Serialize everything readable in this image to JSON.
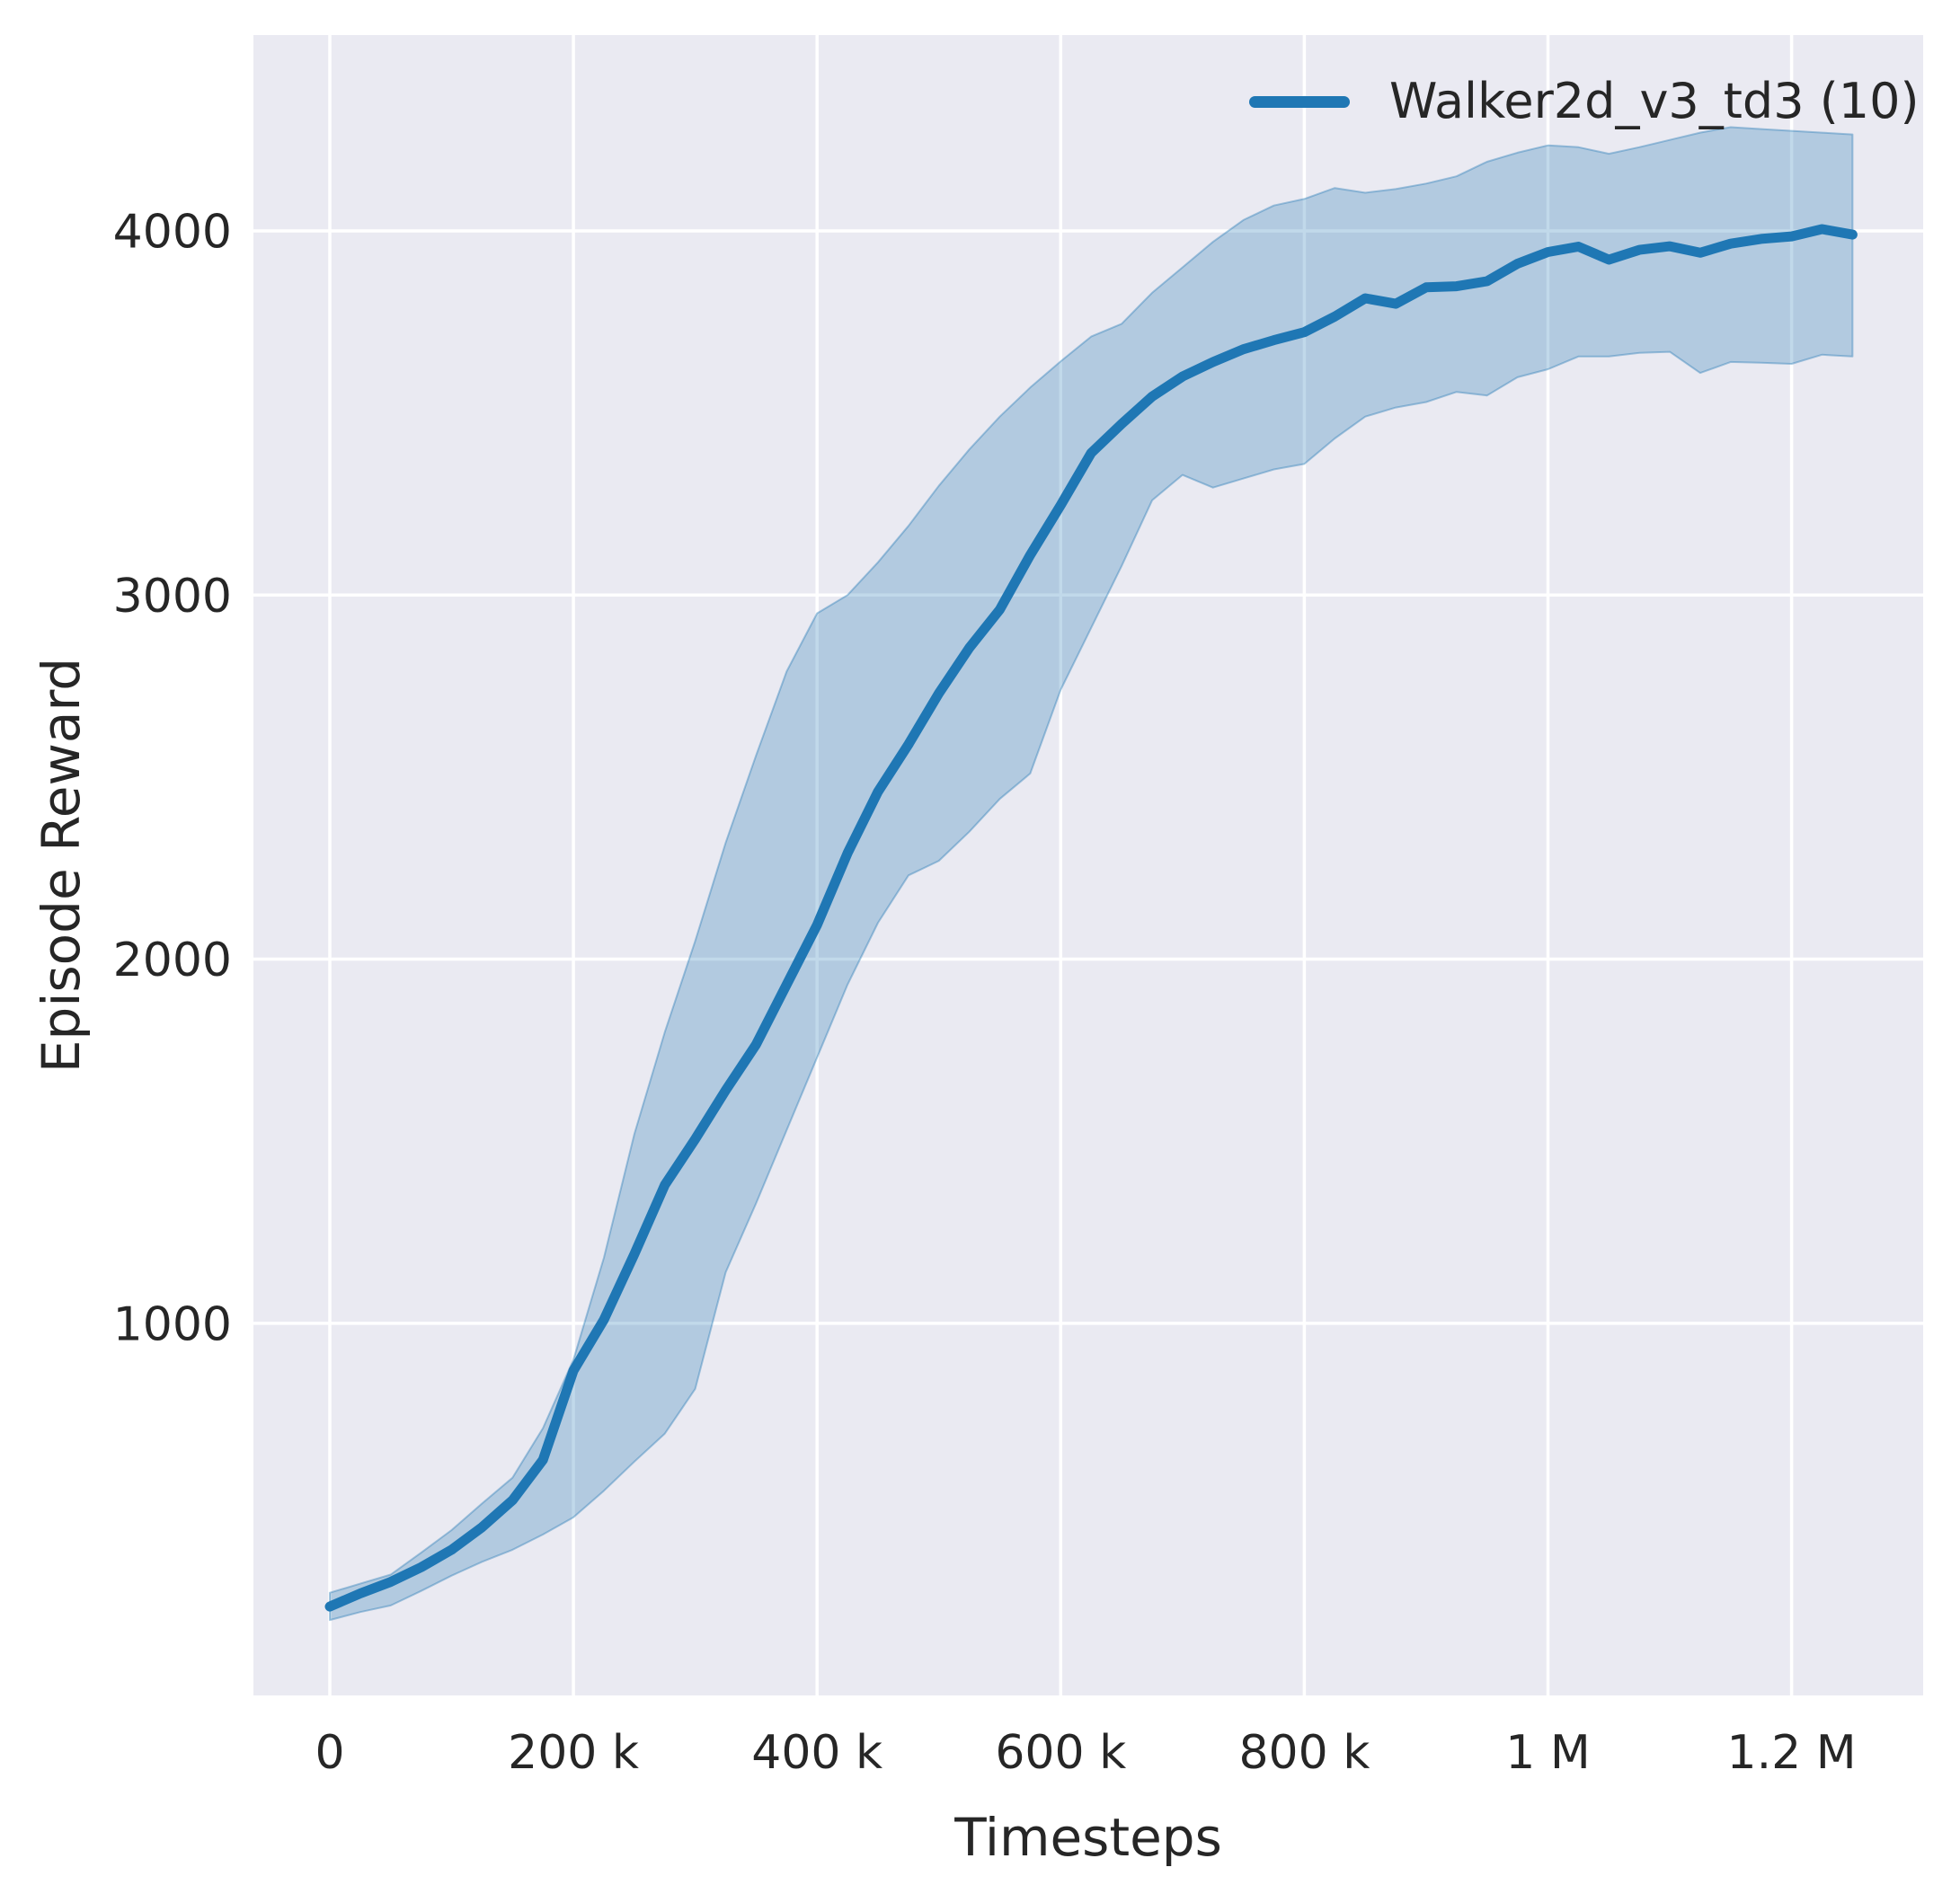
{
  "chart_data": {
    "type": "line",
    "title": "",
    "xlabel": "Timesteps",
    "ylabel": "Episode Reward",
    "grid": true,
    "legend_position": "upper right",
    "background_color": "#eaeaf2",
    "grid_color": "#ffffff",
    "text_color": "#262626",
    "xlim": [
      -62700,
      1308000
    ],
    "ylim": [
      -22,
      4538
    ],
    "x_ticks": [
      {
        "value": 0,
        "label": "0"
      },
      {
        "value": 200000,
        "label": "200 k"
      },
      {
        "value": 400000,
        "label": "400 k"
      },
      {
        "value": 600000,
        "label": "600 k"
      },
      {
        "value": 800000,
        "label": "800 k"
      },
      {
        "value": 1000000,
        "label": "1 M"
      },
      {
        "value": 1200000,
        "label": "1.2 M"
      }
    ],
    "y_ticks": [
      {
        "value": 1000,
        "label": "1000"
      },
      {
        "value": 2000,
        "label": "2000"
      },
      {
        "value": 3000,
        "label": "3000"
      },
      {
        "value": 4000,
        "label": "4000"
      }
    ],
    "series": [
      {
        "name": "Walker2d_v3_td3 (10)",
        "color": "#1f77b4",
        "band_fill_alpha": 0.28,
        "band_edge_alpha": 0.38,
        "x": [
          0,
          25000,
          50000,
          75000,
          100000,
          125000,
          150000,
          175000,
          200000,
          225000,
          250000,
          275000,
          300000,
          325000,
          350000,
          375000,
          400000,
          425000,
          450000,
          475000,
          500000,
          525000,
          550000,
          575000,
          600000,
          625000,
          650000,
          675000,
          700000,
          725000,
          750000,
          775000,
          800000,
          825000,
          850000,
          875000,
          900000,
          925000,
          950000,
          975000,
          1000000,
          1025000,
          1050000,
          1075000,
          1100000,
          1125000,
          1150000,
          1175000,
          1200000,
          1225000,
          1250000
        ],
        "mean": [
          222,
          258,
          290,
          330,
          378,
          440,
          514,
          625,
          870,
          1010,
          1190,
          1380,
          1506,
          1640,
          1766,
          1930,
          2094,
          2291,
          2460,
          2590,
          2730,
          2855,
          2960,
          3110,
          3247,
          3390,
          3470,
          3545,
          3600,
          3640,
          3675,
          3700,
          3722,
          3765,
          3815,
          3800,
          3845,
          3848,
          3862,
          3910,
          3942,
          3957,
          3921,
          3948,
          3958,
          3940,
          3965,
          3978,
          3985,
          4005,
          3990
        ],
        "upper": [
          260,
          285,
          310,
          370,
          432,
          505,
          576,
          712,
          900,
          1180,
          1520,
          1800,
          2050,
          2320,
          2560,
          2790,
          2950,
          3000,
          3090,
          3190,
          3300,
          3400,
          3490,
          3570,
          3642,
          3710,
          3745,
          3830,
          3900,
          3970,
          4030,
          4070,
          4088,
          4118,
          4105,
          4115,
          4130,
          4150,
          4190,
          4215,
          4235,
          4230,
          4212,
          4230,
          4250,
          4270,
          4285,
          4280,
          4275,
          4270,
          4265
        ],
        "lower": [
          185,
          207,
          225,
          265,
          307,
          345,
          378,
          420,
          467,
          540,
          620,
          697,
          820,
          1140,
          1330,
          1530,
          1730,
          1930,
          2100,
          2230,
          2270,
          2350,
          2440,
          2510,
          2740,
          2910,
          3080,
          3260,
          3330,
          3295,
          3320,
          3345,
          3360,
          3430,
          3490,
          3515,
          3530,
          3558,
          3548,
          3598,
          3620,
          3655,
          3655,
          3665,
          3668,
          3610,
          3640,
          3638,
          3635,
          3660,
          3655
        ]
      }
    ]
  }
}
